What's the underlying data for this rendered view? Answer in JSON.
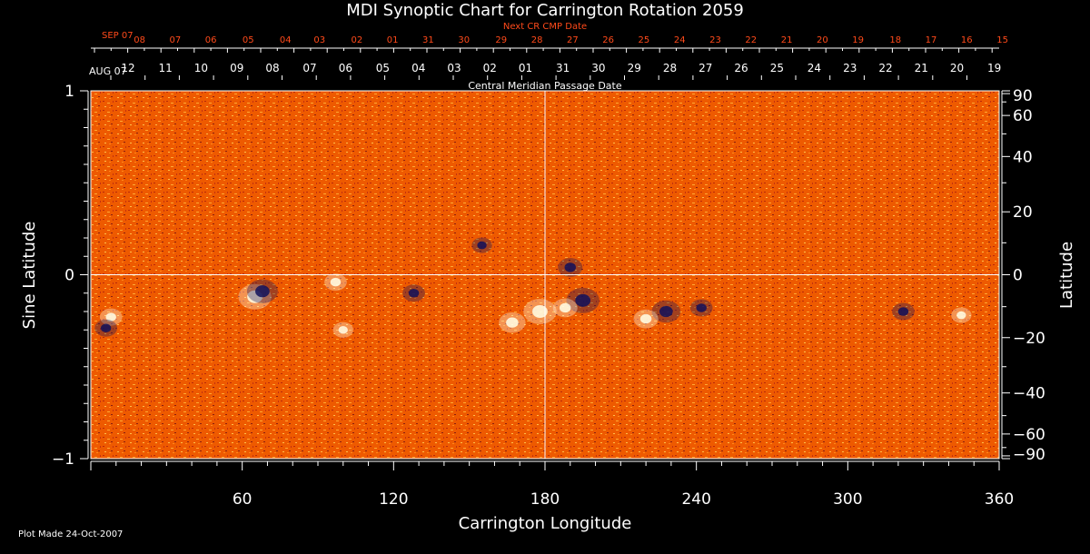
{
  "chart_data": {
    "type": "heatmap",
    "title": "MDI Synoptic Chart for Carrington Rotation 2059",
    "xlabel": "Carrington Longitude",
    "ylabel_left": "Sine Latitude",
    "ylabel_right": "Latitude",
    "xlim": [
      0,
      360
    ],
    "ylim": [
      -1,
      1
    ],
    "x_ticks": [
      60,
      120,
      180,
      240,
      300,
      360
    ],
    "y_ticks_left": [
      {
        "value": 1,
        "label": "1"
      },
      {
        "value": 0,
        "label": "0"
      },
      {
        "value": -1,
        "label": "−1"
      }
    ],
    "y_ticks_right": [
      {
        "deg": 90,
        "label": "90"
      },
      {
        "deg": 60,
        "label": "60"
      },
      {
        "deg": 40,
        "label": "40"
      },
      {
        "deg": 20,
        "label": "20"
      },
      {
        "deg": 0,
        "label": "0"
      },
      {
        "deg": -20,
        "label": "−20"
      },
      {
        "deg": -40,
        "label": "−40"
      },
      {
        "deg": -60,
        "label": "−60"
      },
      {
        "deg": -90,
        "label": "−90"
      }
    ],
    "cmp_axis": {
      "label": "Central Meridian Passage Date",
      "start_label": "AUG 07",
      "dates": [
        {
          "lon": 23,
          "label": "12"
        },
        {
          "lon": 46,
          "label": "11"
        },
        {
          "lon": 68,
          "label": "10"
        },
        {
          "lon": 90,
          "label": "09"
        },
        {
          "lon": 112,
          "label": "08"
        },
        {
          "lon": 135,
          "label": "07"
        },
        {
          "lon": 157,
          "label": "06"
        },
        {
          "lon": 180,
          "label": "05"
        },
        {
          "lon": 202,
          "label": "04"
        },
        {
          "lon": 224,
          "label": "03"
        },
        {
          "lon": 246,
          "label": "02"
        },
        {
          "lon": 268,
          "label": "01"
        },
        {
          "lon": 291,
          "label": "31"
        },
        {
          "lon": 313,
          "label": "30"
        },
        {
          "lon": 335,
          "label": "29"
        },
        {
          "lon": 357,
          "label": "28"
        },
        {
          "lon": 379,
          "label": "27"
        },
        {
          "lon": 401,
          "label": "26"
        },
        {
          "lon": 423,
          "label": "25"
        },
        {
          "lon": 446,
          "label": "24"
        },
        {
          "lon": 468,
          "label": "23"
        },
        {
          "lon": 490,
          "label": "22"
        },
        {
          "lon": 512,
          "label": "21"
        },
        {
          "lon": 534,
          "label": "20"
        },
        {
          "lon": 557,
          "label": "19"
        }
      ]
    },
    "next_cr_axis": {
      "label": "Next CR CMP Date",
      "start_label": "SEP 07",
      "color": "#ff4a1a",
      "dates": [
        {
          "lon": 30,
          "label": "08"
        },
        {
          "lon": 52,
          "label": "07"
        },
        {
          "lon": 74,
          "label": "06"
        },
        {
          "lon": 97,
          "label": "05"
        },
        {
          "lon": 120,
          "label": "04"
        },
        {
          "lon": 141,
          "label": "03"
        },
        {
          "lon": 164,
          "label": "02"
        },
        {
          "lon": 186,
          "label": "01"
        },
        {
          "lon": 208,
          "label": "31"
        },
        {
          "lon": 230,
          "label": "30"
        },
        {
          "lon": 253,
          "label": "29"
        },
        {
          "lon": 275,
          "label": "28"
        },
        {
          "lon": 297,
          "label": "27"
        },
        {
          "lon": 319,
          "label": "26"
        },
        {
          "lon": 341,
          "label": "25"
        },
        {
          "lon": 363,
          "label": "24"
        },
        {
          "lon": 385,
          "label": "23"
        },
        {
          "lon": 407,
          "label": "22"
        },
        {
          "lon": 429,
          "label": "21"
        },
        {
          "lon": 451,
          "label": "20"
        },
        {
          "lon": 473,
          "label": "19"
        },
        {
          "lon": 496,
          "label": "18"
        },
        {
          "lon": 518,
          "label": "17"
        },
        {
          "lon": 540,
          "label": "16"
        },
        {
          "lon": 562,
          "label": "15"
        }
      ]
    },
    "footer": "Plot Made 24-Oct-2007",
    "colormap": {
      "background": "#ee5a00",
      "positive": "#ffffe8",
      "negative": "#10105a"
    },
    "active_regions": [
      {
        "lon": 65,
        "sinlat": -0.12,
        "polarity": "positive",
        "strength": 1.0
      },
      {
        "lon": 68,
        "sinlat": -0.09,
        "polarity": "negative",
        "strength": 0.9
      },
      {
        "lon": 8,
        "sinlat": -0.23,
        "polarity": "positive",
        "strength": 0.5
      },
      {
        "lon": 6,
        "sinlat": -0.29,
        "polarity": "negative",
        "strength": 0.5
      },
      {
        "lon": 97,
        "sinlat": -0.04,
        "polarity": "positive",
        "strength": 0.5
      },
      {
        "lon": 128,
        "sinlat": -0.1,
        "polarity": "negative",
        "strength": 0.5
      },
      {
        "lon": 178,
        "sinlat": -0.2,
        "polarity": "positive",
        "strength": 1.0
      },
      {
        "lon": 167,
        "sinlat": -0.26,
        "polarity": "positive",
        "strength": 0.7
      },
      {
        "lon": 195,
        "sinlat": -0.14,
        "polarity": "negative",
        "strength": 1.0
      },
      {
        "lon": 188,
        "sinlat": -0.18,
        "polarity": "positive",
        "strength": 0.6
      },
      {
        "lon": 190,
        "sinlat": 0.04,
        "polarity": "negative",
        "strength": 0.6
      },
      {
        "lon": 228,
        "sinlat": -0.2,
        "polarity": "negative",
        "strength": 0.8
      },
      {
        "lon": 220,
        "sinlat": -0.24,
        "polarity": "positive",
        "strength": 0.6
      },
      {
        "lon": 242,
        "sinlat": -0.18,
        "polarity": "negative",
        "strength": 0.5
      },
      {
        "lon": 322,
        "sinlat": -0.2,
        "polarity": "negative",
        "strength": 0.5
      },
      {
        "lon": 345,
        "sinlat": -0.22,
        "polarity": "positive",
        "strength": 0.4
      },
      {
        "lon": 100,
        "sinlat": -0.3,
        "polarity": "positive",
        "strength": 0.4
      },
      {
        "lon": 155,
        "sinlat": 0.16,
        "polarity": "negative",
        "strength": 0.4
      }
    ],
    "grid": {
      "lon": 180,
      "sinlat": 0
    }
  }
}
